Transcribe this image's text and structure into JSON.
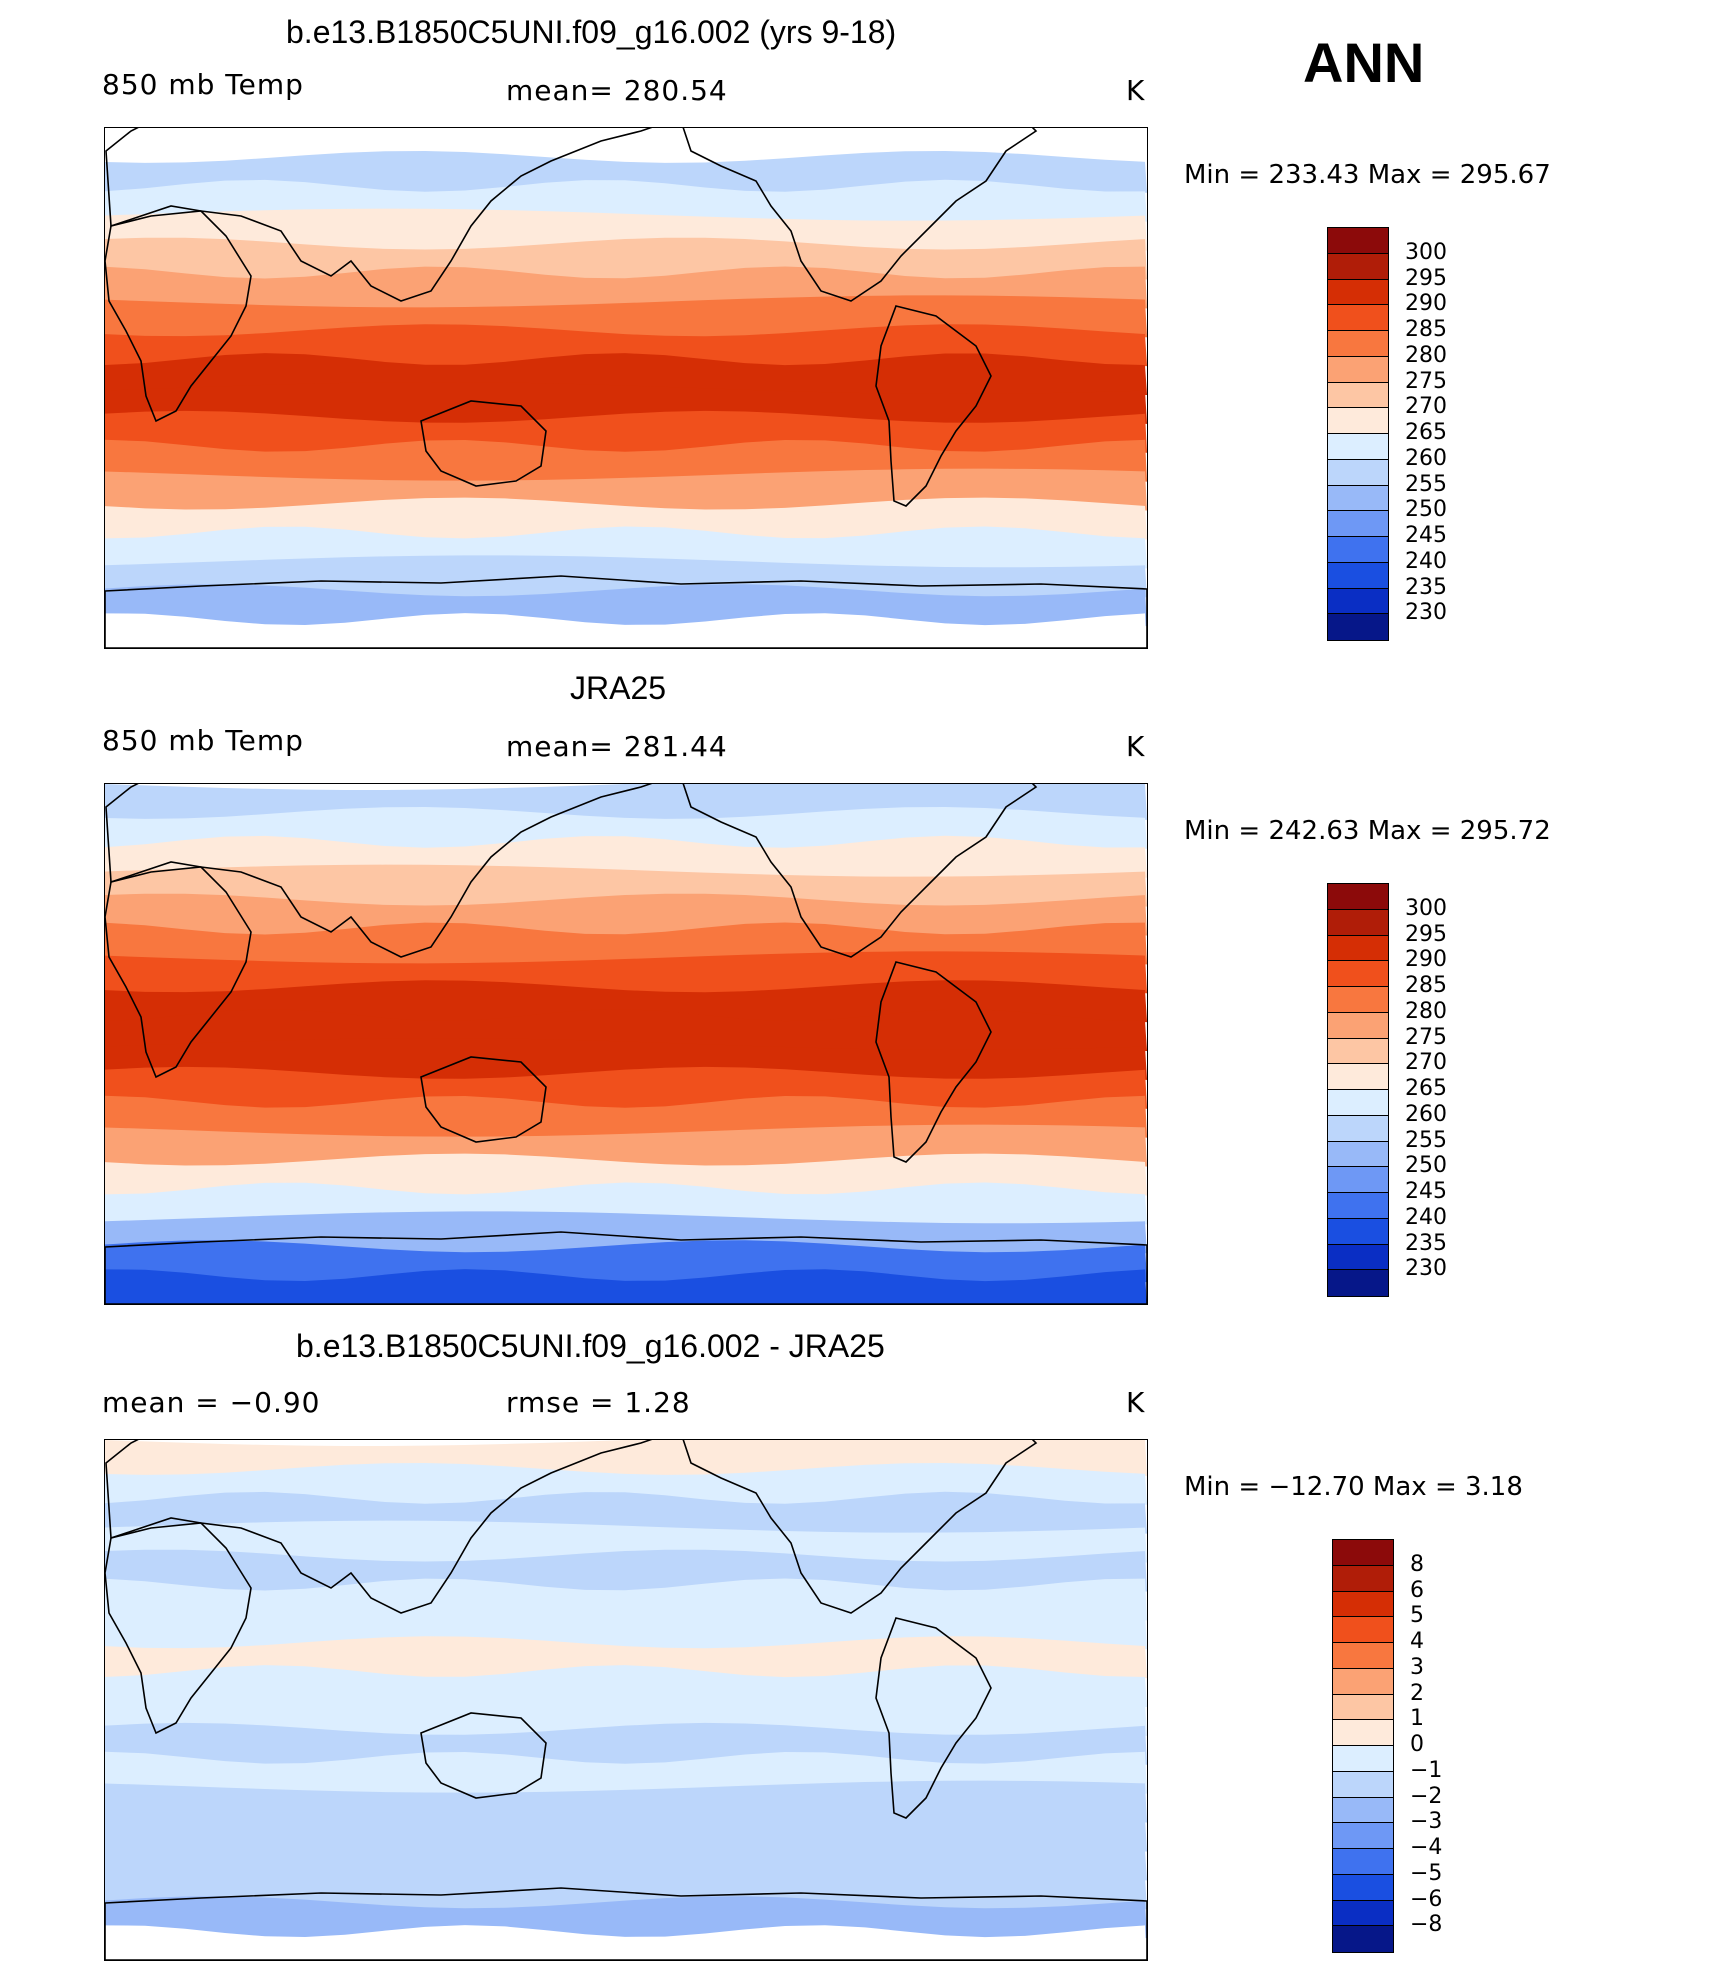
{
  "season": "ANN",
  "chart_data": [
    {
      "type": "heatmap",
      "title": "b.e13.B1850C5UNI.f09_g16.002 (yrs 9-18)",
      "left_label": "850 mb Temp",
      "center_label": "mean= 280.54",
      "units": "K",
      "min_max": "Min = 233.43 Max = 295.67",
      "colorbar_levels": [
        "300",
        "295",
        "290",
        "285",
        "280",
        "275",
        "270",
        "265",
        "260",
        "255",
        "250",
        "245",
        "240",
        "235",
        "230"
      ],
      "colorbar_colors": [
        "#8c0a0a",
        "#b01d08",
        "#d52e05",
        "#f0501c",
        "#f8773f",
        "#fba274",
        "#fdc6a4",
        "#feeadb",
        "#dceeff",
        "#bcd6fb",
        "#98b9f8",
        "#6e98f5",
        "#3f72ef",
        "#1a4fe1",
        "#0a2ec4",
        "#061789"
      ],
      "band_colors": [
        "#ffffff",
        "#bcd6fb",
        "#dceeff",
        "#feeadb",
        "#fdc6a4",
        "#fba274",
        "#f8773f",
        "#f0501c",
        "#d52e05",
        "#d52e05",
        "#f0501c",
        "#f8773f",
        "#fba274",
        "#feeadb",
        "#dceeff",
        "#bcd6fb",
        "#98b9f8",
        "#ffffff"
      ]
    },
    {
      "type": "heatmap",
      "title": "JRA25",
      "left_label": "850 mb Temp",
      "center_label": "mean= 281.44",
      "units": "K",
      "min_max": "Min = 242.63 Max = 295.72",
      "colorbar_levels": [
        "300",
        "295",
        "290",
        "285",
        "280",
        "275",
        "270",
        "265",
        "260",
        "255",
        "250",
        "245",
        "240",
        "235",
        "230"
      ],
      "colorbar_colors": [
        "#8c0a0a",
        "#b01d08",
        "#d52e05",
        "#f0501c",
        "#f8773f",
        "#fba274",
        "#fdc6a4",
        "#feeadb",
        "#dceeff",
        "#bcd6fb",
        "#98b9f8",
        "#6e98f5",
        "#3f72ef",
        "#1a4fe1",
        "#0a2ec4",
        "#061789"
      ],
      "band_colors": [
        "#bcd6fb",
        "#dceeff",
        "#feeadb",
        "#fdc6a4",
        "#fba274",
        "#f8773f",
        "#f0501c",
        "#d52e05",
        "#d52e05",
        "#d52e05",
        "#f0501c",
        "#f8773f",
        "#fba274",
        "#feeadb",
        "#dceeff",
        "#98b9f8",
        "#3f72ef",
        "#1a4fe1"
      ]
    },
    {
      "type": "heatmap",
      "title": "b.e13.B1850C5UNI.f09_g16.002 - JRA25",
      "left_label": "mean =   −0.90",
      "center_label": "rmse =    1.28",
      "units": "K",
      "min_max": "Min = −12.70 Max =    3.18",
      "colorbar_levels": [
        "8",
        "6",
        "5",
        "4",
        "3",
        "2",
        "1",
        "0",
        "−1",
        "−2",
        "−3",
        "−4",
        "−5",
        "−6",
        "−8"
      ],
      "colorbar_colors": [
        "#8c0a0a",
        "#b01d08",
        "#d52e05",
        "#f0501c",
        "#f8773f",
        "#fba274",
        "#fdc6a4",
        "#feeadb",
        "#dceeff",
        "#bcd6fb",
        "#98b9f8",
        "#6e98f5",
        "#3f72ef",
        "#1a4fe1",
        "#0a2ec4",
        "#061789"
      ],
      "band_colors": [
        "#feeadb",
        "#dceeff",
        "#bcd6fb",
        "#dceeff",
        "#bcd6fb",
        "#dceeff",
        "#dceeff",
        "#feeadb",
        "#dceeff",
        "#dceeff",
        "#bcd6fb",
        "#dceeff",
        "#bcd6fb",
        "#bcd6fb",
        "#bcd6fb",
        "#bcd6fb",
        "#98b9f8",
        "#ffffff"
      ]
    }
  ]
}
